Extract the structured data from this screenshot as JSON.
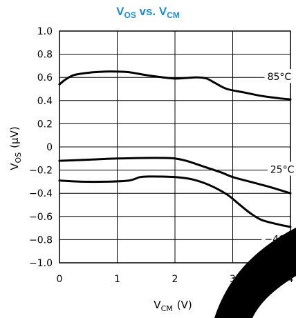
{
  "chart_data": {
    "type": "line",
    "title": {
      "main": "V",
      "sub1": "OS",
      "mid": " vs. V",
      "sub2": "CM"
    },
    "xlabel": {
      "main": "V",
      "sub": "CM",
      "unit": "(V)"
    },
    "ylabel": {
      "main": "V",
      "sub": "OS",
      "unit": "(µV)"
    },
    "xlim": [
      0,
      4
    ],
    "ylim": [
      -1.0,
      1.0
    ],
    "x_ticks": [
      0,
      1,
      2,
      3,
      4
    ],
    "x_tick_labels": [
      "0",
      "1",
      "2",
      "3",
      "4"
    ],
    "y_ticks": [
      1.0,
      0.8,
      0.6,
      0.4,
      0.2,
      0,
      -0.2,
      -0.4,
      -0.6,
      -0.8,
      -1.0
    ],
    "y_tick_labels": [
      "1.0",
      "0.8",
      "0.6",
      "0.4",
      "0.2",
      "0",
      "−0.2",
      "−0.4",
      "−0.6",
      "−0.8",
      "−1.0"
    ],
    "grid": true,
    "series": [
      {
        "name": "85°C",
        "x": [
          0,
          0.1,
          0.25,
          0.5,
          0.8,
          1.0,
          1.2,
          1.5,
          1.8,
          2.0,
          2.2,
          2.4,
          2.55,
          2.7,
          2.9,
          3.2,
          3.5,
          3.8,
          4.0
        ],
        "y": [
          0.54,
          0.58,
          0.62,
          0.64,
          0.65,
          0.65,
          0.645,
          0.62,
          0.6,
          0.59,
          0.595,
          0.6,
          0.59,
          0.55,
          0.5,
          0.47,
          0.44,
          0.42,
          0.41
        ]
      },
      {
        "name": "25°C",
        "x": [
          0,
          0.5,
          1.0,
          1.5,
          1.8,
          2.0,
          2.2,
          2.5,
          2.8,
          3.0,
          3.3,
          3.6,
          4.0
        ],
        "y": [
          -0.12,
          -0.11,
          -0.1,
          -0.095,
          -0.095,
          -0.1,
          -0.12,
          -0.17,
          -0.22,
          -0.26,
          -0.3,
          -0.34,
          -0.4
        ]
      },
      {
        "name": "−40°C",
        "x": [
          0,
          0.4,
          0.8,
          1.2,
          1.4,
          1.6,
          2.0,
          2.3,
          2.6,
          2.9,
          3.1,
          3.3,
          3.5,
          3.8,
          4.0
        ],
        "y": [
          -0.29,
          -0.3,
          -0.3,
          -0.29,
          -0.26,
          -0.255,
          -0.26,
          -0.28,
          -0.33,
          -0.41,
          -0.49,
          -0.57,
          -0.63,
          -0.67,
          -0.69
        ]
      }
    ],
    "annotations": [
      {
        "text": "85°C",
        "x": 3.6,
        "y": 0.6
      },
      {
        "text": "25°C",
        "x": 3.65,
        "y": -0.2
      },
      {
        "text": "−40°C",
        "x": 3.55,
        "y": -0.8
      }
    ],
    "line_color": "#000000",
    "title_color": "#1a8fd6"
  }
}
